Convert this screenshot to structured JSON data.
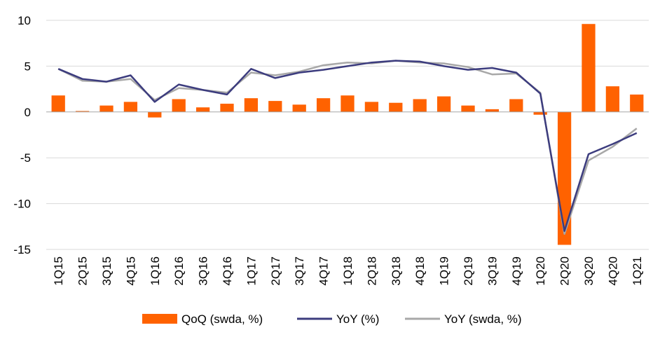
{
  "chart_data": {
    "type": "bar",
    "categories": [
      "1Q15",
      "2Q15",
      "3Q15",
      "4Q15",
      "1Q16",
      "2Q16",
      "3Q16",
      "4Q16",
      "1Q17",
      "2Q17",
      "3Q17",
      "4Q17",
      "1Q18",
      "2Q18",
      "3Q18",
      "4Q18",
      "1Q19",
      "2Q19",
      "3Q19",
      "4Q19",
      "1Q20",
      "2Q20",
      "3Q20",
      "4Q20",
      "1Q21"
    ],
    "series": [
      {
        "name": "QoQ (swda, %)",
        "type": "bar",
        "color": "#ff6200",
        "values": [
          1.8,
          0.1,
          0.7,
          1.1,
          -0.6,
          1.4,
          0.5,
          0.9,
          1.5,
          1.2,
          0.8,
          1.5,
          1.8,
          1.1,
          1.0,
          1.4,
          1.7,
          0.7,
          0.3,
          1.4,
          -0.3,
          -14.5,
          9.6,
          2.8,
          1.9
        ]
      },
      {
        "name": "YoY (%)",
        "type": "line",
        "color": "#3c3c7e",
        "values": [
          4.7,
          3.6,
          3.3,
          4.0,
          1.1,
          3.0,
          2.4,
          1.9,
          4.7,
          3.7,
          4.3,
          4.6,
          5.0,
          5.4,
          5.6,
          5.5,
          5.0,
          4.6,
          4.8,
          4.3,
          2.0,
          -13.0,
          -4.6,
          -3.5,
          -2.3
        ]
      },
      {
        "name": "YoY (swda, %)",
        "type": "line",
        "color": "#a8a8a8",
        "values": [
          4.7,
          3.4,
          3.3,
          3.6,
          1.3,
          2.6,
          2.4,
          2.1,
          4.3,
          4.0,
          4.4,
          5.1,
          5.4,
          5.3,
          5.6,
          5.4,
          5.3,
          4.9,
          4.1,
          4.2,
          2.1,
          -13.3,
          -5.3,
          -3.8,
          -1.8
        ]
      }
    ],
    "y_ticks": [
      10,
      5,
      0,
      -5,
      -10,
      -15
    ],
    "ylim": [
      -15,
      10
    ],
    "grid": "horizontal",
    "legend_position": "bottom"
  }
}
